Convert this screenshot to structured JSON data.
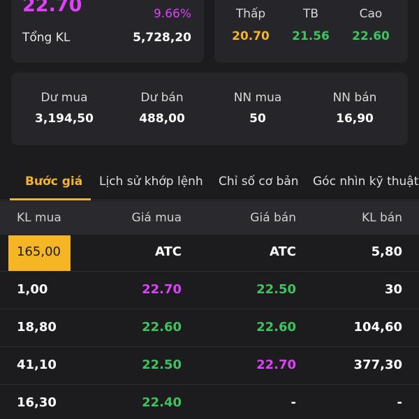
{
  "summary": {
    "price": "22.70",
    "change_pct": "9.66%",
    "volume_label": "Tổng KL",
    "volume_value": "5,728,20"
  },
  "range": [
    {
      "label": "Thấp",
      "value": "20.70",
      "color": "#f5b524"
    },
    {
      "label": "TB",
      "value": "21.56",
      "color": "#3dc45e"
    },
    {
      "label": "Cao",
      "value": "22.60",
      "color": "#3dc45e"
    }
  ],
  "depth": [
    {
      "label": "Dư mua",
      "value": "3,194,50"
    },
    {
      "label": "Dư bán",
      "value": "488,00"
    },
    {
      "label": "NN mua",
      "value": "50"
    },
    {
      "label": "NN bán",
      "value": "16,90"
    }
  ],
  "tabs": [
    {
      "label": "Bước giá",
      "active": true
    },
    {
      "label": "Lịch sử khớp lệnh",
      "active": false
    },
    {
      "label": "Chỉ số cơ bản",
      "active": false
    },
    {
      "label": "Góc nhìn kỹ thuật",
      "active": false
    }
  ],
  "table": {
    "headers": [
      "KL mua",
      "Giá mua",
      "Giá bán",
      "KL bán"
    ],
    "rows": [
      {
        "kl_mua": "165,00",
        "gia_mua": "ATC",
        "gia_ban": "ATC",
        "kl_ban": "5,80"
      },
      {
        "kl_mua": "1,00",
        "gia_mua": "22.70",
        "gia_ban": "22.50",
        "kl_ban": "30"
      },
      {
        "kl_mua": "18,80",
        "gia_mua": "22.60",
        "gia_ban": "22.60",
        "kl_ban": "104,60"
      },
      {
        "kl_mua": "41,10",
        "gia_mua": "22.50",
        "gia_ban": "22.70",
        "kl_ban": "377,30"
      },
      {
        "kl_mua": "16,30",
        "gia_mua": "22.40",
        "gia_ban": "-",
        "kl_ban": "-"
      }
    ]
  },
  "colors": {
    "ceiling": "#e040fb",
    "up": "#3dc45e",
    "floor_low": "#f5b524",
    "accent": "#f5b524"
  }
}
